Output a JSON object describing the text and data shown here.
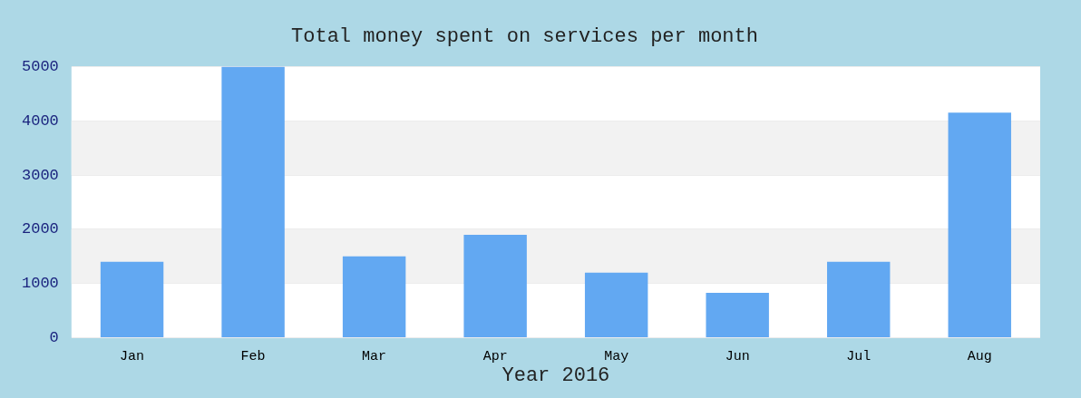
{
  "chart_data": {
    "type": "bar",
    "title": "Total money spent on services per month",
    "xlabel": "Year 2016",
    "categories": [
      "Jan",
      "Feb",
      "Mar",
      "Apr",
      "May",
      "Jun",
      "Jul",
      "Aug"
    ],
    "values": [
      1400,
      5000,
      1500,
      1900,
      1200,
      830,
      1400,
      4150
    ],
    "color": "#62a8f2",
    "ylim": [
      0,
      5000
    ],
    "yticks": [
      0,
      1000,
      2000,
      3000,
      4000,
      5000
    ],
    "grid": "y"
  }
}
